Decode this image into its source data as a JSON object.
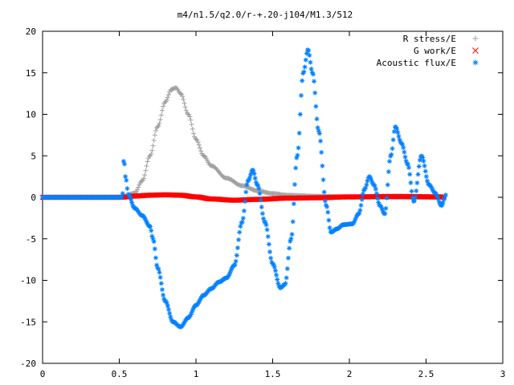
{
  "chart_data": {
    "type": "scatter",
    "title": "m4/n1.5/q2.0/r-+.20-j104/M1.3/512",
    "xlabel": "",
    "ylabel": "",
    "xlim": [
      0,
      3
    ],
    "ylim": [
      -20,
      20
    ],
    "x_ticks": [
      "0",
      "0.5",
      "1",
      "1.5",
      "2",
      "2.5",
      "3"
    ],
    "y_ticks": [
      "20",
      "15",
      "10",
      "5",
      "0",
      "-5",
      "-10",
      "-15",
      "-20"
    ],
    "grid": false,
    "legend_position": "top-right",
    "series": [
      {
        "name": "R stress/E",
        "marker": "plus",
        "color": "#a0a0a0",
        "knots": [
          [
            0,
            0
          ],
          [
            0.52,
            0
          ],
          [
            0.6,
            0.5
          ],
          [
            0.65,
            2
          ],
          [
            0.7,
            5
          ],
          [
            0.75,
            8.5
          ],
          [
            0.8,
            11.5
          ],
          [
            0.84,
            13
          ],
          [
            0.87,
            13.2
          ],
          [
            0.9,
            12.5
          ],
          [
            0.95,
            10
          ],
          [
            1.0,
            7
          ],
          [
            1.05,
            5
          ],
          [
            1.1,
            3.8
          ],
          [
            1.2,
            2.3
          ],
          [
            1.3,
            1.4
          ],
          [
            1.4,
            0.8
          ],
          [
            1.5,
            0.45
          ],
          [
            1.6,
            0.25
          ],
          [
            1.8,
            0.12
          ],
          [
            2.0,
            0.05
          ],
          [
            2.3,
            0.02
          ],
          [
            2.62,
            0.0
          ]
        ]
      },
      {
        "name": "G work/E",
        "marker": "cross",
        "color": "#ff0000",
        "knots": [
          [
            0,
            0
          ],
          [
            0.5,
            0
          ],
          [
            0.6,
            0.15
          ],
          [
            0.7,
            0.25
          ],
          [
            0.8,
            0.3
          ],
          [
            0.9,
            0.25
          ],
          [
            1.0,
            0.05
          ],
          [
            1.1,
            -0.2
          ],
          [
            1.25,
            -0.35
          ],
          [
            1.4,
            -0.25
          ],
          [
            1.6,
            -0.1
          ],
          [
            1.8,
            -0.05
          ],
          [
            2.0,
            0.05
          ],
          [
            2.3,
            0.1
          ],
          [
            2.62,
            0.05
          ]
        ]
      },
      {
        "name": "Acoustic flux/E",
        "marker": "star",
        "color": "#0080ff",
        "knots": [
          [
            0,
            0
          ],
          [
            0.52,
            0
          ],
          [
            0.53,
            4.8
          ],
          [
            0.54,
            2.5
          ],
          [
            0.56,
            0.3
          ],
          [
            0.6,
            -1.3
          ],
          [
            0.65,
            -2.2
          ],
          [
            0.7,
            -3.5
          ],
          [
            0.72,
            -5
          ],
          [
            0.75,
            -8.5
          ],
          [
            0.8,
            -12.5
          ],
          [
            0.85,
            -15
          ],
          [
            0.9,
            -15.6
          ],
          [
            0.95,
            -14.5
          ],
          [
            1.0,
            -13
          ],
          [
            1.05,
            -11.8
          ],
          [
            1.1,
            -11
          ],
          [
            1.15,
            -10.2
          ],
          [
            1.2,
            -9.7
          ],
          [
            1.25,
            -8.2
          ],
          [
            1.3,
            -3
          ],
          [
            1.34,
            2
          ],
          [
            1.37,
            3.3
          ],
          [
            1.4,
            1.5
          ],
          [
            1.45,
            -3
          ],
          [
            1.5,
            -8
          ],
          [
            1.55,
            -10.9
          ],
          [
            1.58,
            -10.5
          ],
          [
            1.62,
            -5
          ],
          [
            1.66,
            5
          ],
          [
            1.7,
            15
          ],
          [
            1.73,
            17.8
          ],
          [
            1.76,
            15
          ],
          [
            1.8,
            8
          ],
          [
            1.85,
            -1
          ],
          [
            1.88,
            -4.2
          ],
          [
            1.92,
            -3.8
          ],
          [
            1.96,
            -3.3
          ],
          [
            2.02,
            -3.2
          ],
          [
            2.06,
            -2
          ],
          [
            2.1,
            1
          ],
          [
            2.13,
            2.5
          ],
          [
            2.16,
            1.5
          ],
          [
            2.2,
            -1
          ],
          [
            2.23,
            -2
          ],
          [
            2.27,
            5
          ],
          [
            2.3,
            8.5
          ],
          [
            2.34,
            6.5
          ],
          [
            2.38,
            4
          ],
          [
            2.42,
            -0.5
          ],
          [
            2.47,
            5
          ],
          [
            2.52,
            1.5
          ],
          [
            2.56,
            0.5
          ],
          [
            2.6,
            -1
          ],
          [
            2.63,
            0.3
          ]
        ]
      }
    ]
  }
}
